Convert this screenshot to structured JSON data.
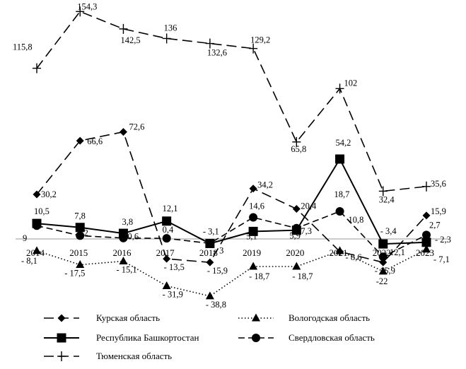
{
  "chart_data": {
    "type": "line",
    "title": "",
    "xlabel": "",
    "ylabel": "",
    "categories": [
      "2014",
      "2015",
      "2016",
      "2017",
      "2018",
      "2019",
      "2020",
      "2021",
      "2022",
      "2023"
    ],
    "ylim": [
      -45,
      160
    ],
    "grid": false,
    "legend_position": "bottom",
    "series": [
      {
        "name": "Курская область",
        "values": [
          30.2,
          66.6,
          72.6,
          -13.5,
          -15.9,
          34.2,
          20.4,
          -8.6,
          -15.9,
          15.9
        ],
        "labels": [
          "30,2",
          "66,6",
          "72,6",
          "- 13,5",
          "- 15,9",
          "34,2",
          "20,4",
          "- 8,6",
          "- 15,9",
          "15,9"
        ],
        "style": "long-dash",
        "marker": "diamond"
      },
      {
        "name": "Вологодская область",
        "values": [
          -8.1,
          -17.5,
          -15.1,
          -31.9,
          -38.8,
          -18.7,
          -18.7,
          -8.1,
          -22,
          -7.1
        ],
        "labels": [
          "- 8,1",
          "- 17,5",
          "- 15,1",
          "- 31,9",
          "- 38,8",
          "- 18,7",
          "- 18,7",
          "",
          "-22",
          "- 7,1"
        ],
        "style": "dotted",
        "marker": "triangle"
      },
      {
        "name": "Республика Башкортостан",
        "values": [
          10.5,
          7.8,
          3.8,
          12.1,
          -3.1,
          5.1,
          5.9,
          54.2,
          -3.4,
          -2.3
        ],
        "labels": [
          "10,5",
          "7,8",
          "3,8",
          "12,1",
          "- 3,1",
          "5,1",
          "5,9",
          "54,2",
          "- 3,4",
          "- 2,3"
        ],
        "style": "solid",
        "marker": "square"
      },
      {
        "name": "Свердловская область",
        "values": [
          9,
          2.2,
          0.6,
          0.4,
          -3,
          14.6,
          7.3,
          18.7,
          -12.1,
          2.7
        ],
        "labels": [
          "9",
          "2,2",
          "0,6",
          "0,4",
          "- 3",
          "14,6",
          "7,3",
          "18,7",
          "- 12,1",
          "2,7"
        ],
        "extra_labels": [
          "10,8"
        ],
        "style": "dash",
        "marker": "circle"
      },
      {
        "name": "Тюменская область",
        "values": [
          115.8,
          154.3,
          142.5,
          136,
          132.6,
          129.2,
          65.8,
          102,
          32.4,
          35.6
        ],
        "labels": [
          "115,8",
          "154,3",
          "142,5",
          "136",
          "132,6",
          "129,2",
          "65,8",
          "102",
          "32,4",
          "35,6"
        ],
        "style": "long-dash",
        "marker": "plus"
      }
    ]
  }
}
